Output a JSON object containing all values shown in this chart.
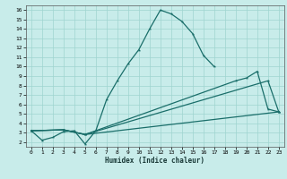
{
  "xlabel": "Humidex (Indice chaleur)",
  "xlim": [
    -0.5,
    23.5
  ],
  "ylim": [
    1.5,
    16.5
  ],
  "xticks": [
    0,
    1,
    2,
    3,
    4,
    5,
    6,
    7,
    8,
    9,
    10,
    11,
    12,
    13,
    14,
    15,
    16,
    17,
    18,
    19,
    20,
    21,
    22,
    23
  ],
  "yticks": [
    2,
    3,
    4,
    5,
    6,
    7,
    8,
    9,
    10,
    11,
    12,
    13,
    14,
    15,
    16
  ],
  "bg_color": "#c8ecea",
  "line_color": "#1a6e6a",
  "grid_color": "#9fd4d0",
  "series": [
    {
      "x": [
        0,
        1,
        2,
        3,
        4,
        5,
        6,
        7,
        8,
        9,
        10,
        11,
        12,
        13,
        14,
        15,
        16,
        17
      ],
      "y": [
        3.2,
        2.2,
        2.5,
        3.1,
        3.2,
        1.8,
        3.2,
        6.5,
        8.5,
        10.3,
        11.8,
        14.0,
        16.0,
        15.6,
        14.8,
        13.5,
        11.2,
        10.0
      ]
    },
    {
      "x": [
        0,
        3,
        5,
        19,
        20,
        21,
        22,
        23
      ],
      "y": [
        3.2,
        3.3,
        2.8,
        8.5,
        8.8,
        9.5,
        5.5,
        5.2
      ]
    },
    {
      "x": [
        0,
        3,
        5,
        22,
        23
      ],
      "y": [
        3.2,
        3.3,
        2.8,
        8.5,
        5.2
      ]
    },
    {
      "x": [
        0,
        3,
        5,
        23
      ],
      "y": [
        3.2,
        3.3,
        2.8,
        5.2
      ]
    }
  ]
}
